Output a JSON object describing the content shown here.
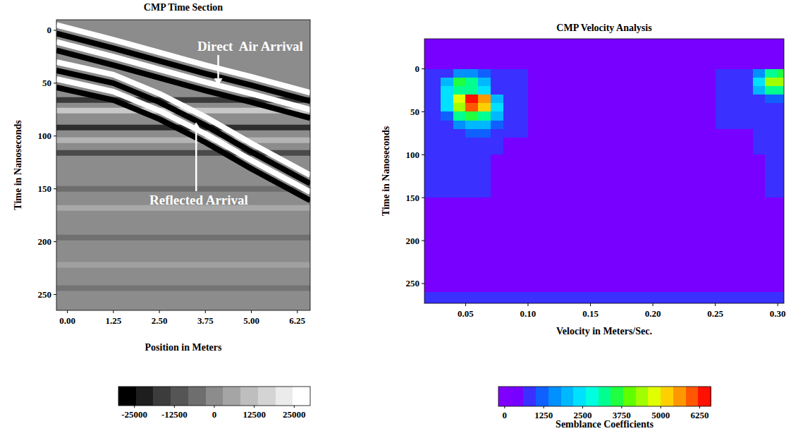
{
  "chart_data": [
    {
      "type": "line",
      "title": "CMP Time Section",
      "x_label": "Position in Meters",
      "y_label": "Time in Nanoseconds",
      "xlim": [
        -0.3,
        6.6
      ],
      "xticks": [
        {
          "value": 0,
          "label": "0.00"
        },
        1.25,
        {
          "value": 2.5,
          "label": "2.50"
        },
        3.75,
        {
          "value": 5,
          "label": "5.00"
        },
        6.25
      ],
      "ylim": [
        265,
        -10
      ],
      "yticks": [
        0,
        50,
        100,
        150,
        200,
        250
      ],
      "grid": false,
      "series": [
        {
          "color": "#3a3a3a",
          "x": [
            -0.3,
            6.6
          ],
          "values": [
            66,
            66
          ]
        },
        {
          "color": "#c8c8c8",
          "x": [
            -0.3,
            6.6
          ],
          "values": [
            76,
            76
          ]
        },
        {
          "color": "#2e2e2e",
          "x": [
            -0.3,
            6.6
          ],
          "values": [
            92,
            92
          ]
        },
        {
          "color": "#b4b4b4",
          "x": [
            -0.3,
            6.6
          ],
          "values": [
            104,
            104
          ]
        },
        {
          "color": "#4a4a4a",
          "x": [
            -0.3,
            6.6
          ],
          "values": [
            116,
            116
          ]
        },
        {
          "color": "#6e6e6e",
          "x": [
            -0.3,
            6.6
          ],
          "values": [
            150,
            150
          ]
        },
        {
          "color": "#a8a8a8",
          "x": [
            -0.3,
            6.6
          ],
          "values": [
            168,
            168
          ]
        },
        {
          "color": "#707070",
          "x": [
            -0.3,
            6.6
          ],
          "values": [
            196,
            196
          ]
        },
        {
          "color": "#a0a0a0",
          "x": [
            -0.3,
            6.6
          ],
          "values": [
            222,
            222
          ]
        },
        {
          "color": "#747474",
          "x": [
            -0.3,
            6.6
          ],
          "values": [
            244,
            244
          ]
        },
        {
          "color": "#ffffff",
          "x": [
            -0.3,
            1.25,
            2.5,
            3.75,
            5,
            6.6
          ],
          "values": [
            30,
            42,
            60,
            82,
            107,
            137
          ]
        },
        {
          "color": "#000000",
          "x": [
            -0.3,
            1.25,
            2.5,
            3.75,
            5,
            6.6
          ],
          "values": [
            38,
            50,
            68,
            90,
            115,
            145
          ]
        },
        {
          "color": "#ffffff",
          "x": [
            -0.3,
            1.25,
            2.5,
            3.75,
            5,
            6.6
          ],
          "values": [
            46,
            58,
            76,
            98,
            123,
            153
          ]
        },
        {
          "color": "#000000",
          "x": [
            -0.3,
            1.25,
            2.5,
            3.75,
            5,
            6.6
          ],
          "values": [
            54,
            66,
            84,
            106,
            131,
            161
          ]
        },
        {
          "color": "#ffffff",
          "x": [
            -0.3,
            1.25,
            2.5,
            3.75,
            5,
            6.6
          ],
          "values": [
            -5,
            9,
            21,
            33,
            44,
            59
          ]
        },
        {
          "color": "#000000",
          "x": [
            -0.3,
            1.25,
            2.5,
            3.75,
            5,
            6.6
          ],
          "values": [
            3,
            17,
            29,
            41,
            52,
            67
          ]
        },
        {
          "color": "#ffffff",
          "x": [
            -0.3,
            1.25,
            2.5,
            3.75,
            5,
            6.6
          ],
          "values": [
            11,
            25,
            37,
            49,
            60,
            75
          ]
        },
        {
          "color": "#000000",
          "x": [
            -0.3,
            1.25,
            2.5,
            3.75,
            5,
            6.6
          ],
          "values": [
            19,
            33,
            45,
            57,
            68,
            83
          ]
        }
      ],
      "annotations": [
        {
          "text": "Direct  Air Arrival",
          "x": 4.1,
          "y": 52,
          "text_x": 4.97,
          "text_y": 19.4
        },
        {
          "text": "Reflected Arrival",
          "x": 3.5,
          "y": 87,
          "text_x": 3.57,
          "text_y": 164.9
        }
      ],
      "colorbar": {
        "range": [
          -30000,
          30000
        ],
        "ticks": [
          -25000,
          -12500,
          0,
          12500,
          25000
        ],
        "colors": [
          "#000000",
          "#1e1e1e",
          "#3c3c3c",
          "#555555",
          "#6e6e6e",
          "#8c8c8c",
          "#a5a5a5",
          "#bebebe",
          "#d4d4d4",
          "#ebebeb",
          "#ffffff"
        ]
      }
    },
    {
      "type": "heatmap",
      "title": "CMP Velocity Analysis",
      "x_label": "Velocity in Meters/Sec.",
      "y_label": "Time in Nanoseconds",
      "xlim": [
        0.017,
        0.305
      ],
      "xticks": [
        0.05,
        {
          "value": 0.1,
          "label": "0.10"
        },
        0.15,
        {
          "value": 0.2,
          "label": "0.20"
        },
        0.25,
        {
          "value": 0.3,
          "label": "0.30"
        }
      ],
      "ylim": [
        273,
        -35
      ],
      "yticks": [
        0,
        50,
        100,
        150,
        200,
        250
      ],
      "grid": false,
      "x_edges": [
        0.017,
        0.03,
        0.04,
        0.05,
        0.06,
        0.07,
        0.08,
        0.1,
        0.25,
        0.28,
        0.29,
        0.3,
        0.305
      ],
      "y_edges": [
        -35,
        -5,
        0,
        10,
        20,
        30,
        40,
        50,
        60,
        70,
        80,
        100,
        150,
        200,
        260,
        273
      ],
      "cells": [
        [
          300,
          300,
          300,
          300,
          300,
          300,
          300,
          300,
          300,
          300,
          300,
          300
        ],
        [
          300,
          300,
          300,
          300,
          300,
          300,
          300,
          300,
          300,
          300,
          300,
          300
        ],
        [
          700,
          900,
          1500,
          1500,
          1000,
          800,
          600,
          500,
          700,
          1500,
          3000,
          3500
        ],
        [
          700,
          2000,
          3500,
          3200,
          2000,
          900,
          600,
          500,
          700,
          2500,
          4300,
          4500
        ],
        [
          700,
          2500,
          3300,
          3000,
          2200,
          900,
          600,
          500,
          700,
          1800,
          3000,
          3200
        ],
        [
          700,
          2500,
          4800,
          6500,
          5500,
          2000,
          700,
          500,
          600,
          900,
          1200,
          1200
        ],
        [
          700,
          2200,
          4500,
          6000,
          5000,
          2200,
          700,
          500,
          600,
          800,
          900,
          900
        ],
        [
          700,
          1200,
          3000,
          3500,
          3200,
          1800,
          700,
          500,
          600,
          700,
          800,
          800
        ],
        [
          700,
          900,
          1500,
          2000,
          1800,
          1200,
          700,
          500,
          600,
          700,
          800,
          800
        ],
        [
          700,
          700,
          900,
          1000,
          1000,
          800,
          600,
          400,
          500,
          600,
          700,
          700
        ],
        [
          600,
          600,
          600,
          600,
          600,
          600,
          500,
          400,
          500,
          600,
          700,
          700
        ],
        [
          600,
          600,
          600,
          600,
          600,
          500,
          400,
          300,
          400,
          500,
          600,
          600
        ],
        [
          500,
          500,
          500,
          500,
          500,
          500,
          400,
          300,
          300,
          400,
          500,
          500
        ],
        [
          500,
          500,
          500,
          500,
          500,
          500,
          400,
          300,
          300,
          300,
          300,
          300
        ],
        [
          700,
          700,
          700,
          700,
          700,
          700,
          700,
          700,
          700,
          600,
          600,
          600
        ]
      ],
      "colorbar": {
        "title": "Semblance Coefficients",
        "range": [
          -200,
          6600
        ],
        "ticks": [
          0,
          1250,
          2500,
          3750,
          5000,
          6250
        ],
        "colors": [
          "#8000ff",
          "#7800ff",
          "#3a30ff",
          "#1060ff",
          "#0090ff",
          "#00b8ff",
          "#00e0ff",
          "#00ffe0",
          "#00ff90",
          "#20ff40",
          "#60ff00",
          "#a0ff00",
          "#e0ff00",
          "#ffd000",
          "#ff9800",
          "#ff5800",
          "#ff1000"
        ]
      }
    }
  ]
}
